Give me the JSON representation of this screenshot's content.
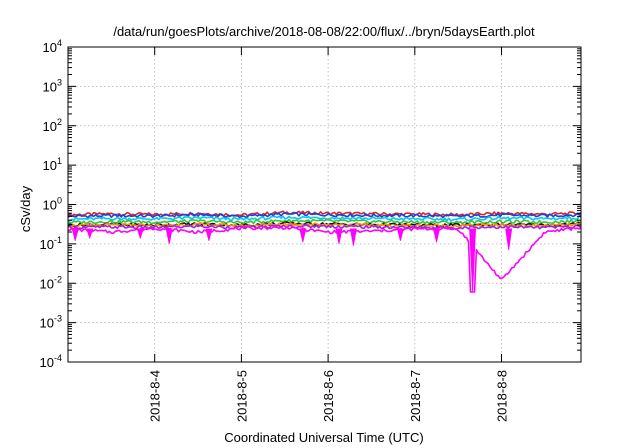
{
  "chart_data": {
    "type": "line",
    "title": "/data/run/goesPlots/archive/2018-08-08/22:00/flux/../bryn/5daysEarth.plot",
    "xlabel": "Coordinated Universal Time (UTC)",
    "ylabel": "cSv/day",
    "yscale": "log",
    "ylim": [
      0.0001,
      10000
    ],
    "xlim": [
      "2018-08-03 00:00",
      "2018-08-08 22:00"
    ],
    "grid": true,
    "legend": "none",
    "y_ticks": [
      {
        "base": "10",
        "exp": "-4",
        "value": 0.0001
      },
      {
        "base": "10",
        "exp": "-3",
        "value": 0.001
      },
      {
        "base": "10",
        "exp": "-2",
        "value": 0.01
      },
      {
        "base": "10",
        "exp": "-1",
        "value": 0.1
      },
      {
        "base": "10",
        "exp": "0",
        "value": 1
      },
      {
        "base": "10",
        "exp": "1",
        "value": 10
      },
      {
        "base": "10",
        "exp": "2",
        "value": 100
      },
      {
        "base": "10",
        "exp": "3",
        "value": 1000
      },
      {
        "base": "10",
        "exp": "4",
        "value": 10000
      }
    ],
    "x_ticks": [
      {
        "label": "2018-8-4",
        "value": "2018-08-04 00:00"
      },
      {
        "label": "2018-8-5",
        "value": "2018-08-05 00:00"
      },
      {
        "label": "2018-8-6",
        "value": "2018-08-06 00:00"
      },
      {
        "label": "2018-8-7",
        "value": "2018-08-07 00:00"
      },
      {
        "label": "2018-8-8",
        "value": "2018-08-08 00:00"
      }
    ],
    "x": [
      "2018-08-03 00:00",
      "2018-08-03 12:00",
      "2018-08-04 00:00",
      "2018-08-04 12:00",
      "2018-08-05 00:00",
      "2018-08-05 12:00",
      "2018-08-06 00:00",
      "2018-08-06 12:00",
      "2018-08-07 00:00",
      "2018-08-07 12:00",
      "2018-08-08 00:00",
      "2018-08-08 12:00",
      "2018-08-08 22:00"
    ],
    "series": [
      {
        "color": "#d62728",
        "values": [
          0.55,
          0.58,
          0.56,
          0.6,
          0.54,
          0.63,
          0.6,
          0.58,
          0.57,
          0.55,
          0.6,
          0.57,
          0.6
        ]
      },
      {
        "color": "#1f3fd6",
        "values": [
          0.5,
          0.52,
          0.51,
          0.55,
          0.5,
          0.57,
          0.55,
          0.53,
          0.52,
          0.5,
          0.54,
          0.52,
          0.55
        ]
      },
      {
        "color": "#00c8ff",
        "values": [
          0.42,
          0.44,
          0.43,
          0.46,
          0.42,
          0.47,
          0.46,
          0.44,
          0.43,
          0.42,
          0.45,
          0.44,
          0.46
        ]
      },
      {
        "color": "#32c832",
        "values": [
          0.35,
          0.37,
          0.36,
          0.38,
          0.35,
          0.39,
          0.38,
          0.37,
          0.36,
          0.35,
          0.37,
          0.36,
          0.38
        ]
      },
      {
        "color": "#141414",
        "values": [
          0.3,
          0.31,
          0.3,
          0.32,
          0.3,
          0.33,
          0.32,
          0.31,
          0.3,
          0.3,
          0.31,
          0.3,
          0.32
        ]
      },
      {
        "color": "#ff8c00",
        "values": [
          0.29,
          0.3,
          0.29,
          0.31,
          0.29,
          0.32,
          0.31,
          0.3,
          0.29,
          0.29,
          0.3,
          0.29,
          0.31
        ]
      },
      {
        "color": "#a020f0",
        "values": [
          0.26,
          0.27,
          0.26,
          0.28,
          0.26,
          0.28,
          0.28,
          0.27,
          0.26,
          0.26,
          0.27,
          0.26,
          0.28
        ]
      },
      {
        "color": "#ff00ff",
        "values": [
          0.24,
          0.2,
          0.25,
          0.2,
          0.25,
          0.26,
          0.2,
          0.21,
          0.24,
          0.24,
          0.012,
          0.2,
          0.26
        ]
      }
    ],
    "dips": [
      {
        "x": "2018-08-03 02:00",
        "value": 0.12
      },
      {
        "x": "2018-08-03 06:00",
        "value": 0.14
      },
      {
        "x": "2018-08-03 20:00",
        "value": 0.14
      },
      {
        "x": "2018-08-04 04:00",
        "value": 0.1
      },
      {
        "x": "2018-08-04 15:00",
        "value": 0.12
      },
      {
        "x": "2018-08-05 17:00",
        "value": 0.11
      },
      {
        "x": "2018-08-06 03:00",
        "value": 0.1
      },
      {
        "x": "2018-08-06 07:00",
        "value": 0.09
      },
      {
        "x": "2018-08-06 20:00",
        "value": 0.12
      },
      {
        "x": "2018-08-07 06:00",
        "value": 0.11
      },
      {
        "x": "2018-08-07 16:00",
        "value": 0.006
      },
      {
        "x": "2018-08-08 02:00",
        "value": 0.07
      }
    ]
  }
}
